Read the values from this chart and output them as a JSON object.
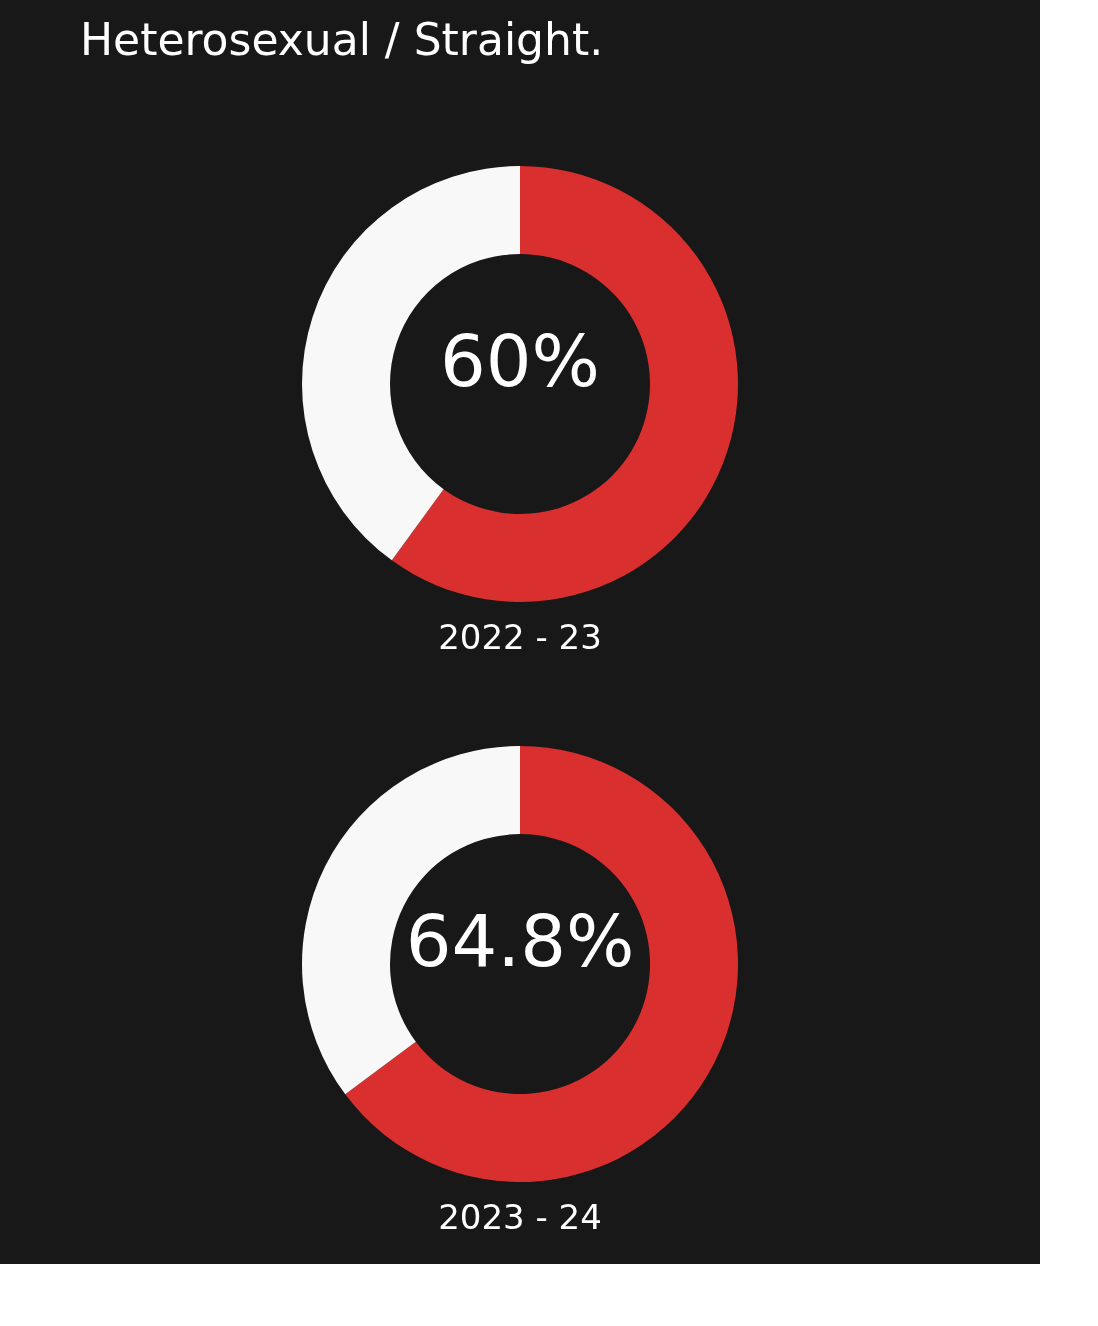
{
  "chart_data": [
    {
      "type": "donut",
      "title": "Heterosexual / Straight.",
      "xlabel": "2022 - 23",
      "categories": [
        null,
        null
      ],
      "values": [
        60,
        40
      ],
      "colors": [
        "#d92f2f",
        "#f8f8f8"
      ],
      "value_labels": [
        "60%",
        null
      ]
    },
    {
      "type": "donut",
      "xlabel": "2023 - 24",
      "categories": [
        null,
        null
      ],
      "values": [
        64.8,
        35.2
      ],
      "colors": [
        "#d92f2f",
        "#f8f8f8"
      ],
      "value_labels": [
        "64.8%",
        null
      ]
    }
  ]
}
